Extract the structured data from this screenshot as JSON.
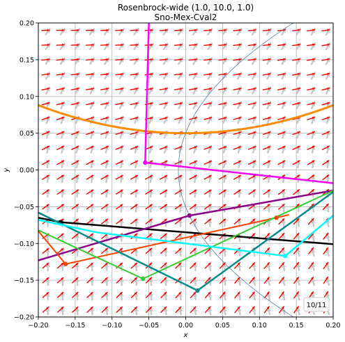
{
  "chart_data": {
    "type": "line",
    "title": "Rosenbrock-wide (1.0, 10.0, 1.0)",
    "subtitle": "Sno-Mex-Cval2",
    "xlabel": "x",
    "ylabel": "y",
    "xlim": [
      -0.2,
      0.2
    ],
    "ylim": [
      -0.2,
      0.2
    ],
    "grid": true,
    "xticks": [
      "−0.20",
      "−0.15",
      "−0.10",
      "−0.05",
      "0.00",
      "0.05",
      "0.10",
      "0.15",
      "0.20"
    ],
    "yticks": [
      "−0.20",
      "−0.15",
      "−0.10",
      "−0.05",
      "0.00",
      "0.05",
      "0.10",
      "0.15",
      "0.20"
    ],
    "badge": "10/11",
    "contours": [
      {
        "name": "orange-parabola",
        "color": "#ff8c00",
        "width": 3,
        "kind": "parabola",
        "a": 10.0,
        "c": 0.05
      },
      {
        "name": "thin-contour",
        "color": "#5a7fa8",
        "width": 0.8,
        "kind": "sideways-parabola",
        "a": 10.0,
        "c": 0.0,
        "x0": -0.01
      }
    ],
    "series": [
      {
        "color": "#ff00ff",
        "width": 2.5,
        "x": [
          -0.05,
          -0.055,
          0.2
        ],
        "y": [
          0.2,
          0.01,
          -0.018
        ],
        "marker": [
          -0.055,
          0.01
        ]
      },
      {
        "color": "#000000",
        "width": 2.5,
        "x": [
          -0.2,
          -0.17,
          0.2
        ],
        "y": [
          -0.065,
          -0.071,
          -0.101
        ],
        "marker": [
          -0.17,
          -0.071
        ]
      },
      {
        "color": "#8b008b",
        "width": 2.5,
        "x": [
          -0.2,
          0.005,
          0.2
        ],
        "y": [
          -0.123,
          -0.062,
          -0.028
        ],
        "marker": [
          0.005,
          -0.062
        ]
      },
      {
        "color": "#ff4500",
        "width": 2.0,
        "x": [
          -0.2,
          -0.163,
          0.123,
          0.14
        ],
        "y": [
          -0.083,
          -0.128,
          -0.065,
          -0.061
        ],
        "marker": [
          -0.163,
          -0.128
        ]
      },
      {
        "color": "#32cd32",
        "width": 2.0,
        "x": [
          -0.2,
          -0.058,
          0.2
        ],
        "y": [
          -0.082,
          -0.148,
          -0.028
        ],
        "marker": [
          -0.058,
          -0.148
        ]
      },
      {
        "color": "#008b8b",
        "width": 2.5,
        "x": [
          -0.2,
          0.016,
          0.2
        ],
        "y": [
          -0.058,
          -0.164,
          -0.03
        ],
        "marker": [
          0.016,
          -0.164
        ]
      },
      {
        "color": "#00ffff",
        "width": 2.5,
        "x": [
          -0.2,
          -0.12,
          0.135,
          0.2
        ],
        "y": [
          -0.068,
          -0.085,
          -0.117,
          -0.062
        ],
        "marker": [
          0.135,
          -0.117
        ]
      }
    ],
    "marker_colors": {
      "orange": "#ff4500"
    }
  },
  "quiver": {
    "red": "#ff0000",
    "gray": "#c8c8c8"
  }
}
